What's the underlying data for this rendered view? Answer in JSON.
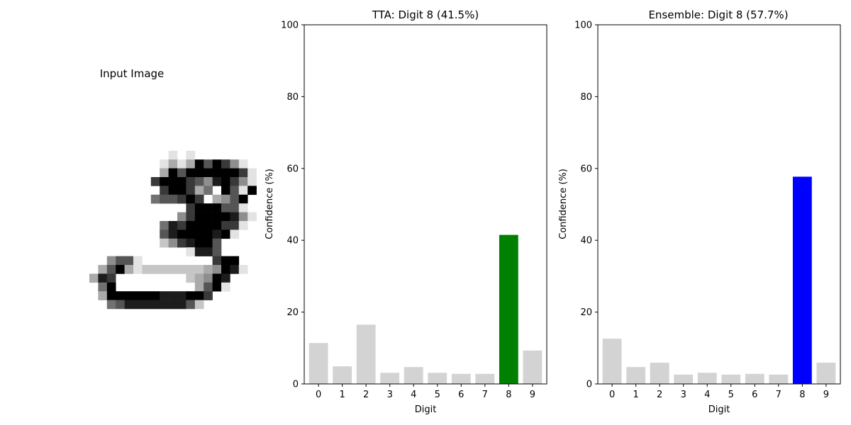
{
  "image_panel": {
    "title": "Input Image",
    "pixels": [
      "0000000000000000000000000000",
      "0000000000000000000000000000",
      "0000000000000000000000000000",
      "0000000000000000000000000000",
      "0000000000000000000000000000",
      "00000000000000000000000000000",
      "0000000000000000000000000000",
      "000000000000001010000000000",
      "0000000000000131396974100000",
      "0000000000000396999999710000",
      "0000000000007999764897410000",
      "000000000000079973509619000",
      "00000000000056679703469000",
      "000000000000000079996610000",
      "0000000000000004799998410000",
      "00000000000005879999771000",
      "0000000000000689999891000000",
      "0000000000000247899600000000",
      "00000000000000001886000000000",
      "0000000466100000000799000000",
      "000000369312222222349810000",
      "00000387000000002349800000",
      "000000590000000003691000000",
      "00000039999998889970000000",
      "0000000568888888620000000",
      "0000000000000000000000000000",
      "0000000000000000000000000000",
      "0000000000000000000000000000"
    ]
  },
  "chart_data": [
    {
      "type": "bar",
      "title": "TTA: Digit 8 (41.5%)",
      "xlabel": "Digit",
      "ylabel": "Confidence (%)",
      "categories": [
        "0",
        "1",
        "2",
        "3",
        "4",
        "5",
        "6",
        "7",
        "8",
        "9"
      ],
      "values": [
        11.4,
        4.9,
        16.5,
        3.1,
        4.7,
        3.1,
        2.8,
        2.8,
        41.5,
        9.3
      ],
      "highlight_index": 8,
      "highlight_color": "#008000",
      "bar_color": "#d3d3d3",
      "ylim": [
        0,
        100
      ],
      "yticks": [
        "0",
        "20",
        "40",
        "60",
        "80",
        "100"
      ],
      "grid": false
    },
    {
      "type": "bar",
      "title": "Ensemble: Digit 8 (57.7%)",
      "xlabel": "Digit",
      "ylabel": "Confidence (%)",
      "categories": [
        "0",
        "1",
        "2",
        "3",
        "4",
        "5",
        "6",
        "7",
        "8",
        "9"
      ],
      "values": [
        12.6,
        4.7,
        5.9,
        2.6,
        3.1,
        2.6,
        2.8,
        2.6,
        57.7,
        5.9
      ],
      "highlight_index": 8,
      "highlight_color": "#0000ff",
      "bar_color": "#d3d3d3",
      "ylim": [
        0,
        100
      ],
      "yticks": [
        "0",
        "20",
        "40",
        "60",
        "80",
        "100"
      ],
      "grid": false
    }
  ]
}
